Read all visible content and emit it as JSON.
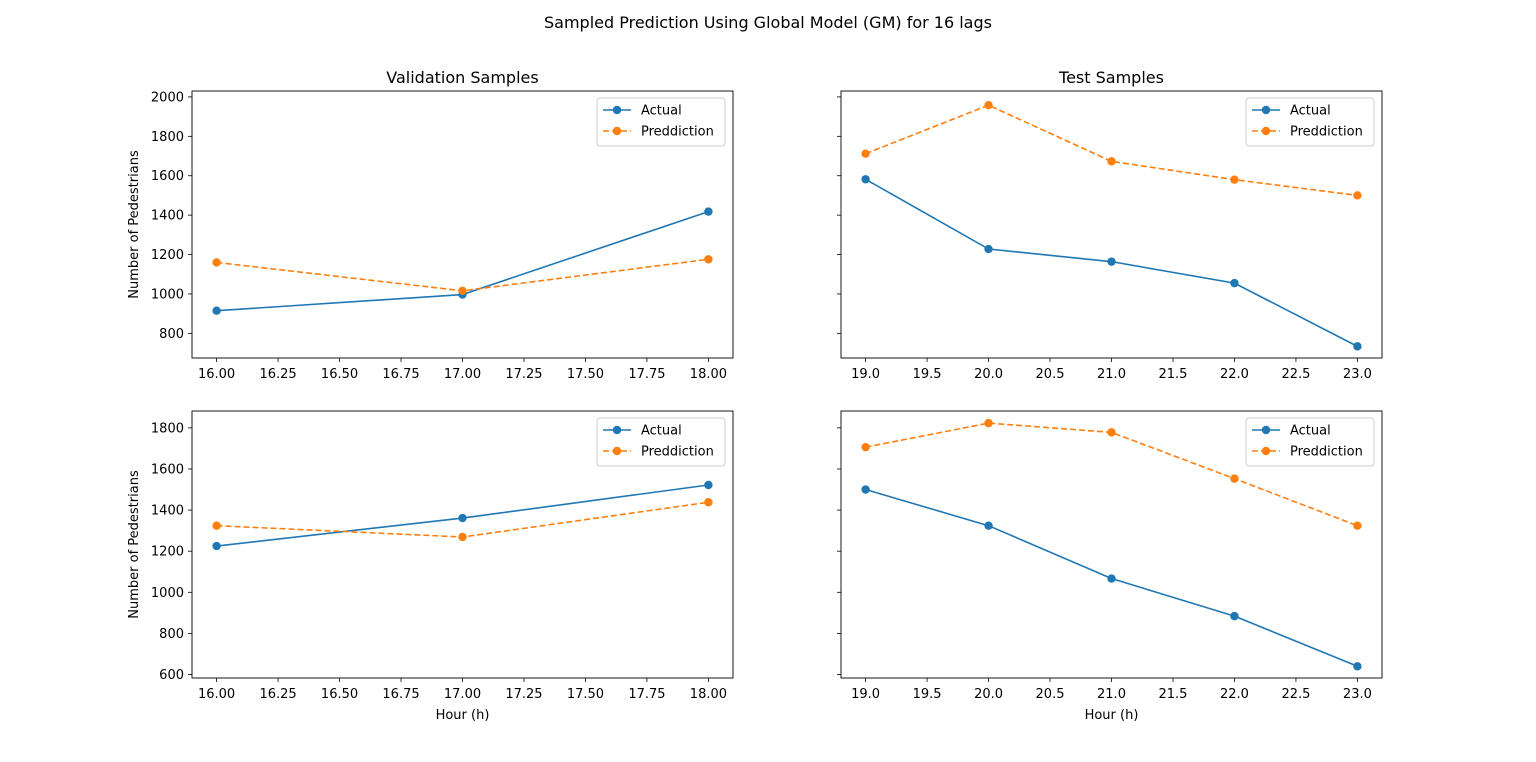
{
  "suptitle": "Sampled Prediction Using Global Model (GM) for 16 lags",
  "colors": {
    "actual": "#1f77b4",
    "prediction": "#ff7f0e"
  },
  "chart_data": [
    {
      "type": "line",
      "title": "Validation Samples",
      "xlabel": "",
      "ylabel": "Number of Pedestrians",
      "x": [
        16,
        17,
        18
      ],
      "series": [
        {
          "name": "Actual",
          "values": [
            915,
            997,
            1418
          ]
        },
        {
          "name": "Preddiction",
          "values": [
            1160,
            1016,
            1176
          ]
        }
      ],
      "xlim": [
        15.9,
        18.1
      ],
      "ylim": [
        675,
        2030
      ],
      "xticks": [
        16.0,
        16.25,
        16.5,
        16.75,
        17.0,
        17.25,
        17.5,
        17.75,
        18.0
      ],
      "xtick_labels": [
        "16.00",
        "16.25",
        "16.50",
        "16.75",
        "17.00",
        "17.25",
        "17.50",
        "17.75",
        "18.00"
      ],
      "yticks": [
        800,
        1000,
        1200,
        1400,
        1600,
        1800,
        2000
      ],
      "ytick_labels": [
        "800",
        "1000",
        "1200",
        "1400",
        "1600",
        "1800",
        "2000"
      ],
      "legend": "top-right"
    },
    {
      "type": "line",
      "title": "Test Samples",
      "xlabel": "",
      "ylabel": "",
      "x": [
        19,
        20,
        21,
        22,
        23
      ],
      "series": [
        {
          "name": "Actual",
          "values": [
            1582,
            1228,
            1164,
            1055,
            734
          ]
        },
        {
          "name": "Preddiction",
          "values": [
            1712,
            1958,
            1673,
            1580,
            1500
          ]
        }
      ],
      "xlim": [
        18.8,
        23.2
      ],
      "ylim": [
        675,
        2030
      ],
      "xticks": [
        19.0,
        19.5,
        20.0,
        20.5,
        21.0,
        21.5,
        22.0,
        22.5,
        23.0
      ],
      "xtick_labels": [
        "19.0",
        "19.5",
        "20.0",
        "20.5",
        "21.0",
        "21.5",
        "22.0",
        "22.5",
        "23.0"
      ],
      "yticks": [
        800,
        1000,
        1200,
        1400,
        1600,
        1800,
        2000
      ],
      "ytick_labels": [],
      "legend": "top-right"
    },
    {
      "type": "line",
      "title": "",
      "xlabel": "Hour (h)",
      "ylabel": "Number of Pedestrians",
      "x": [
        16,
        17,
        18
      ],
      "series": [
        {
          "name": "Actual",
          "values": [
            1225,
            1361,
            1522
          ]
        },
        {
          "name": "Preddiction",
          "values": [
            1324,
            1269,
            1438
          ]
        }
      ],
      "xlim": [
        15.9,
        18.1
      ],
      "ylim": [
        583,
        1882
      ],
      "xticks": [
        16.0,
        16.25,
        16.5,
        16.75,
        17.0,
        17.25,
        17.5,
        17.75,
        18.0
      ],
      "xtick_labels": [
        "16.00",
        "16.25",
        "16.50",
        "16.75",
        "17.00",
        "17.25",
        "17.50",
        "17.75",
        "18.00"
      ],
      "yticks": [
        600,
        800,
        1000,
        1200,
        1400,
        1600,
        1800
      ],
      "ytick_labels": [
        "600",
        "800",
        "1000",
        "1200",
        "1400",
        "1600",
        "1800"
      ],
      "legend": "top-right"
    },
    {
      "type": "line",
      "title": "",
      "xlabel": "Hour (h)",
      "ylabel": "",
      "x": [
        19,
        20,
        21,
        22,
        23
      ],
      "series": [
        {
          "name": "Actual",
          "values": [
            1500,
            1324,
            1067,
            884,
            640
          ]
        },
        {
          "name": "Preddiction",
          "values": [
            1706,
            1823,
            1778,
            1553,
            1324
          ]
        }
      ],
      "xlim": [
        18.8,
        23.2
      ],
      "ylim": [
        583,
        1882
      ],
      "xticks": [
        19.0,
        19.5,
        20.0,
        20.5,
        21.0,
        21.5,
        22.0,
        22.5,
        23.0
      ],
      "xtick_labels": [
        "19.0",
        "19.5",
        "20.0",
        "20.5",
        "21.0",
        "21.5",
        "22.0",
        "22.5",
        "23.0"
      ],
      "yticks": [
        600,
        800,
        1000,
        1200,
        1400,
        1600,
        1800
      ],
      "ytick_labels": [],
      "legend": "top-right"
    }
  ]
}
